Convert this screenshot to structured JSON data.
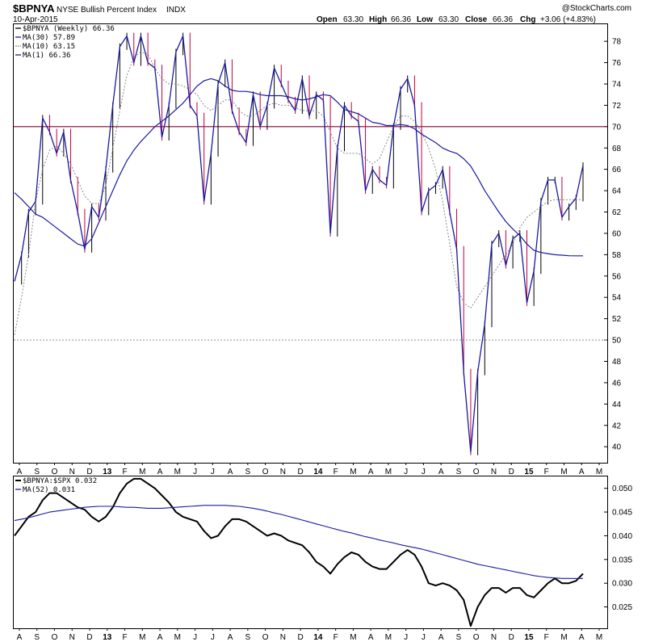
{
  "header": {
    "symbol": "$BPNYA",
    "description": "NYSE Bullish Percent Index",
    "exchange": "INDX",
    "date": "10-Apr-2015",
    "open_label": "Open",
    "open": "63.30",
    "high_label": "High",
    "high": "66.36",
    "low_label": "Low",
    "low": "63.30",
    "close_label": "Close",
    "close": "66.36",
    "chg_label": "Chg",
    "chg": "+3.06 (+4.83%)",
    "watermark": "@StockCharts.com"
  },
  "colors": {
    "price": "#000000",
    "up": "#000000",
    "down": "#c0003c",
    "ma30": "#1a1aa0",
    "ma10": "#8a8a8a",
    "ma1": "#1a1aa0",
    "ref70": "#800030",
    "ref50": "#808080",
    "ratio": "#000000",
    "ma52": "#1a1aa0"
  },
  "chart_data": [
    {
      "type": "line",
      "title": "$BPNYA NYSE Bullish Percent Index INDX",
      "ylim": [
        38.5,
        79.6
      ],
      "yticks": [
        40,
        42,
        44,
        46,
        48,
        50,
        52,
        54,
        56,
        58,
        60,
        62,
        64,
        66,
        68,
        70,
        72,
        74,
        76,
        78
      ],
      "reference_lines": [
        70,
        50
      ],
      "x_labels": [
        "A",
        "S",
        "O",
        "N",
        "D",
        "13",
        "F",
        "M",
        "A",
        "M",
        "J",
        "J",
        "A",
        "S",
        "O",
        "N",
        "D",
        "14",
        "F",
        "M",
        "A",
        "M",
        "J",
        "J",
        "A",
        "S",
        "O",
        "N",
        "D",
        "15",
        "F",
        "M",
        "A",
        "M"
      ],
      "legend": [
        "$BPNYA (Weekly) 66.36",
        "MA(30) 57.89",
        "MA(10) 63.15",
        "MA(1) 66.36"
      ],
      "series": [
        {
          "name": "$BPNYA (Weekly)",
          "values": [
            55.5,
            58,
            62,
            63,
            70.8,
            69.5,
            67.5,
            69.5,
            65,
            62,
            58.5,
            62.5,
            61.5,
            66,
            72,
            77.5,
            78.5,
            76,
            78.5,
            76,
            75.5,
            69,
            72,
            77,
            78.5,
            72,
            71,
            63,
            67.5,
            74,
            76,
            71.5,
            69.5,
            68.5,
            73,
            70,
            72,
            75.5,
            74,
            72.5,
            71.5,
            74.5,
            71,
            73,
            72.5,
            60,
            68,
            72,
            71,
            70.5,
            64,
            66,
            65,
            64.5,
            70,
            73.5,
            74.5,
            72,
            62,
            64,
            64.5,
            66,
            62,
            58.5,
            47,
            39.5,
            47,
            51.5,
            59,
            60,
            57,
            59.5,
            60,
            53.5,
            56.5,
            63,
            65,
            65,
            61.5,
            62.5,
            63.3,
            66.36
          ]
        },
        {
          "name": "MA(30)",
          "values": [
            63.8,
            63.2,
            62.5,
            61.8,
            61.5,
            61,
            60.5,
            60,
            59.5,
            59,
            58.8,
            59.5,
            61,
            62.5,
            64,
            65.5,
            66.8,
            67.8,
            68.6,
            69.3,
            70,
            70.5,
            71,
            71.6,
            72.2,
            73,
            73.8,
            74.3,
            74.5,
            74.3,
            73.8,
            73.4,
            73.3,
            73.3,
            73.2,
            73,
            72.9,
            72.9,
            72.9,
            72.8,
            72.6,
            72.5,
            72.6,
            72.8,
            73,
            72.9,
            72.3,
            71.6,
            71.4,
            71.2,
            70.8,
            70.4,
            70.3,
            70.1,
            70.1,
            70.2,
            70.1,
            69.8,
            69.3,
            68.9,
            68.5,
            68,
            67.7,
            67.5,
            67,
            66.3,
            65.2,
            64,
            63,
            62,
            61.1,
            60.4,
            59.8,
            59,
            58.4,
            58.2,
            58.1,
            58,
            57.95,
            57.9,
            57.89,
            57.89
          ]
        },
        {
          "name": "MA(10)",
          "values": [
            50.5,
            54,
            58,
            63,
            66,
            67.8,
            68.2,
            67.5,
            66.5,
            65,
            63.5,
            62.8,
            62.8,
            64.5,
            68,
            71.5,
            74.8,
            76.5,
            77,
            76.8,
            75.5,
            74.5,
            74,
            74,
            73.8,
            73.5,
            73,
            72,
            71.5,
            72,
            72.5,
            72.5,
            71.5,
            71,
            71,
            71.5,
            72,
            72.2,
            72,
            72,
            71.8,
            71.5,
            71.5,
            71.5,
            71,
            69.5,
            68,
            67.5,
            67.5,
            67.5,
            67,
            66.5,
            67,
            68.5,
            70,
            71,
            71,
            70.5,
            69.5,
            68,
            66,
            63,
            59,
            55,
            53.5,
            53,
            54,
            55,
            56,
            57,
            58,
            59,
            60.5,
            61.5,
            62,
            62.5,
            63,
            63.15,
            63.15,
            63.15,
            63.15,
            63.15
          ]
        },
        {
          "name": "MA(1)",
          "values": [
            55.5,
            58,
            62,
            63,
            70.8,
            69.5,
            67.5,
            69.5,
            65,
            62,
            58.5,
            62.5,
            61.5,
            66,
            72,
            77.5,
            78.5,
            76,
            78.5,
            76,
            75.5,
            69,
            72,
            77,
            78.5,
            72,
            71,
            63,
            67.5,
            74,
            76,
            71.5,
            69.5,
            68.5,
            73,
            70,
            72,
            75.5,
            74,
            72.5,
            71.5,
            74.5,
            71,
            73,
            72.5,
            60,
            68,
            72,
            71,
            70.5,
            64,
            66,
            65,
            64.5,
            70,
            73.5,
            74.5,
            72,
            62,
            64,
            64.5,
            66,
            62,
            58.5,
            47,
            39.5,
            47,
            51.5,
            59,
            60,
            57,
            59.5,
            60,
            53.5,
            56.5,
            63,
            65,
            65,
            61.5,
            62.5,
            63.3,
            66.36
          ]
        }
      ]
    },
    {
      "type": "line",
      "title": "$BPNYA:$SPX",
      "ylim": [
        0.0205,
        0.0525
      ],
      "yticks": [
        0.025,
        0.03,
        0.035,
        0.04,
        0.045,
        0.05
      ],
      "ytick_labels": [
        "0.025",
        "0.030",
        "0.035",
        "0.040",
        "0.045",
        "0.050"
      ],
      "x_labels": [
        "A",
        "S",
        "O",
        "N",
        "D",
        "13",
        "F",
        "M",
        "A",
        "M",
        "J",
        "J",
        "A",
        "S",
        "O",
        "N",
        "D",
        "14",
        "F",
        "M",
        "A",
        "M",
        "J",
        "J",
        "A",
        "S",
        "O",
        "N",
        "D",
        "15",
        "F",
        "M",
        "A",
        "M"
      ],
      "legend": [
        "$BPNYA:$SPX 0.032",
        "MA(52) 0.031"
      ],
      "series": [
        {
          "name": "$BPNYA:$SPX",
          "values": [
            0.04,
            0.042,
            0.044,
            0.045,
            0.0475,
            0.049,
            0.049,
            0.048,
            0.047,
            0.046,
            0.0455,
            0.044,
            0.043,
            0.044,
            0.046,
            0.049,
            0.051,
            0.052,
            0.052,
            0.051,
            0.05,
            0.0485,
            0.047,
            0.045,
            0.044,
            0.0435,
            0.043,
            0.041,
            0.0395,
            0.04,
            0.042,
            0.0435,
            0.0435,
            0.043,
            0.042,
            0.041,
            0.04,
            0.0405,
            0.04,
            0.039,
            0.0385,
            0.038,
            0.0365,
            0.0345,
            0.0335,
            0.032,
            0.034,
            0.0355,
            0.0365,
            0.036,
            0.0345,
            0.0335,
            0.033,
            0.033,
            0.0345,
            0.036,
            0.037,
            0.036,
            0.0335,
            0.03,
            0.0295,
            0.03,
            0.0295,
            0.0285,
            0.0265,
            0.021,
            0.025,
            0.0275,
            0.029,
            0.029,
            0.028,
            0.029,
            0.029,
            0.0275,
            0.027,
            0.0285,
            0.03,
            0.031,
            0.03,
            0.03,
            0.0305,
            0.032
          ]
        },
        {
          "name": "MA(52)",
          "values": [
            0.0432,
            0.0435,
            0.0438,
            0.0442,
            0.0446,
            0.045,
            0.0452,
            0.0454,
            0.0456,
            0.0458,
            0.046,
            0.0461,
            0.0462,
            0.0462,
            0.0462,
            0.0461,
            0.046,
            0.046,
            0.0459,
            0.0458,
            0.0458,
            0.0458,
            0.0459,
            0.046,
            0.0461,
            0.0462,
            0.0463,
            0.0464,
            0.0464,
            0.0464,
            0.0464,
            0.0463,
            0.0462,
            0.046,
            0.0458,
            0.0455,
            0.0452,
            0.0448,
            0.0445,
            0.0441,
            0.0437,
            0.0433,
            0.0429,
            0.0425,
            0.0421,
            0.0417,
            0.0413,
            0.0409,
            0.0406,
            0.0402,
            0.0398,
            0.0395,
            0.0391,
            0.0388,
            0.0385,
            0.0381,
            0.0378,
            0.0375,
            0.0372,
            0.0368,
            0.0364,
            0.036,
            0.0356,
            0.0352,
            0.0348,
            0.0344,
            0.034,
            0.0337,
            0.0334,
            0.0331,
            0.0328,
            0.0325,
            0.0322,
            0.0319,
            0.0316,
            0.0314,
            0.0312,
            0.0311,
            0.031,
            0.031,
            0.031,
            0.031
          ]
        }
      ]
    }
  ]
}
